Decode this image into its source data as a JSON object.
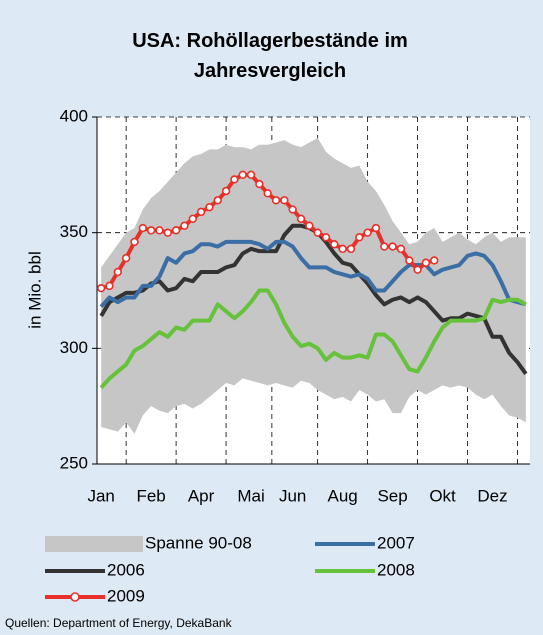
{
  "chart_data": {
    "type": "line",
    "title": "USA: Rohöllagerbestände im Jahresvergleich",
    "ylabel": "in Mio. bbl",
    "source": "Quellen: Department of Energy, DekaBank",
    "categories": [
      "Jan",
      null,
      null,
      null,
      null,
      null,
      "Feb",
      null,
      null,
      null,
      null,
      null,
      "Apr",
      null,
      null,
      null,
      null,
      null,
      "Mai",
      null,
      null,
      null,
      null,
      "Jun",
      null,
      null,
      null,
      null,
      null,
      "Aug",
      null,
      null,
      null,
      null,
      null,
      "Sep",
      null,
      null,
      null,
      null,
      null,
      "Okt",
      null,
      null,
      null,
      null,
      null,
      "Dez",
      null,
      null,
      null,
      null
    ],
    "ylim": [
      250,
      400
    ],
    "yticks": [
      250,
      300,
      350,
      400
    ],
    "grid": true,
    "band": {
      "name": "Spanne 90-08",
      "color": "#c6c6c6",
      "high": [
        335,
        340,
        345,
        350,
        352,
        360,
        365,
        368,
        372,
        376,
        380,
        383,
        384,
        386,
        386,
        388,
        387,
        387,
        386,
        388,
        388,
        389,
        390,
        388,
        387,
        389,
        391,
        385,
        382,
        380,
        378,
        379,
        372,
        368,
        362,
        355,
        350,
        345,
        346,
        350,
        352,
        346,
        348,
        350,
        347,
        345,
        348,
        350,
        346,
        348,
        348,
        348
      ],
      "low": [
        266,
        265,
        264,
        268,
        263,
        271,
        275,
        273,
        272,
        275,
        276,
        274,
        276,
        279,
        282,
        285,
        284,
        287,
        286,
        285,
        284,
        285,
        284,
        283,
        286,
        285,
        282,
        280,
        278,
        279,
        277,
        282,
        280,
        277,
        278,
        272,
        272,
        279,
        282,
        280,
        282,
        284,
        283,
        284,
        283,
        280,
        278,
        280,
        275,
        271,
        270,
        268
      ]
    },
    "series": [
      {
        "name": "2006",
        "color": "#333333",
        "values": [
          314,
          320,
          322,
          324,
          324,
          325,
          328,
          329,
          325,
          326,
          330,
          329,
          333,
          333,
          333,
          335,
          336,
          341,
          343,
          342,
          342,
          342,
          349,
          353,
          353,
          352,
          350,
          346,
          341,
          337,
          336,
          332,
          328,
          323,
          319,
          321,
          322,
          320,
          322,
          320,
          316,
          312,
          313,
          313,
          315,
          314,
          313,
          305,
          305,
          298,
          294,
          289
        ]
      },
      {
        "name": "2007",
        "color": "#3a6ea5",
        "values": [
          318,
          322,
          320,
          322,
          322,
          327,
          327,
          331,
          339,
          337,
          341,
          342,
          345,
          345,
          344,
          346,
          346,
          346,
          346,
          345,
          343,
          346,
          346,
          344,
          339,
          335,
          335,
          335,
          333,
          332,
          331,
          332,
          330,
          325,
          325,
          329,
          333,
          336,
          336,
          336,
          332,
          334,
          335,
          336,
          340,
          341,
          340,
          336,
          329,
          321,
          320,
          319
        ]
      },
      {
        "name": "2008",
        "color": "#66c23a",
        "values": [
          283,
          287,
          290,
          293,
          299,
          301,
          304,
          307,
          305,
          309,
          308,
          312,
          312,
          312,
          319,
          316,
          313,
          316,
          320,
          325,
          325,
          319,
          311,
          305,
          301,
          302,
          300,
          295,
          298,
          296,
          296,
          297,
          296,
          306,
          306,
          303,
          297,
          291,
          290,
          296,
          303,
          309,
          312,
          312,
          312,
          312,
          313,
          321,
          320,
          321,
          321,
          319
        ]
      },
      {
        "name": "2009",
        "color": "#e8302a",
        "markers": true,
        "values": [
          326,
          327,
          333,
          339,
          346,
          352,
          351,
          351,
          350,
          351,
          353,
          356,
          359,
          361,
          364,
          368,
          373,
          375,
          375,
          371,
          367,
          364,
          364,
          360,
          356,
          353,
          350,
          348,
          345,
          343,
          343,
          348,
          350,
          352,
          344,
          344,
          343,
          338,
          334,
          337,
          338,
          null,
          null,
          null,
          null,
          null,
          null,
          null,
          null,
          null,
          null,
          null
        ]
      }
    ]
  }
}
